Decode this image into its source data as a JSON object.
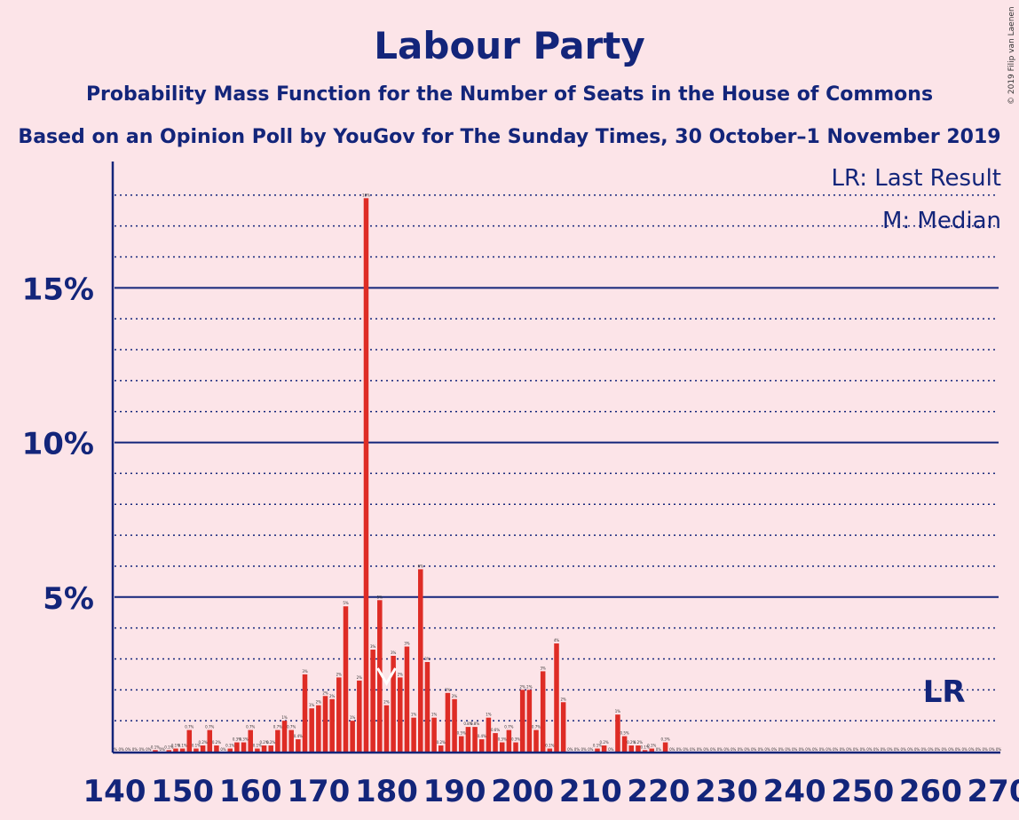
{
  "colors": {
    "background": "#FCE4E8",
    "bar": "#DE2C25",
    "axis": "#13257A",
    "text": "#13257A",
    "median_marker": "#FFFFFF"
  },
  "copyright": "© 2019 Filip van Laenen",
  "chart_data": {
    "type": "bar",
    "title": "Labour Party",
    "subtitle": "Probability Mass Function for the Number of Seats in the House of Commons",
    "subtitle2": "Based on an Opinion Poll by YouGov for The Sunday Times, 30 October–1 November 2019",
    "legend": [
      "LR: Last Result",
      "M: Median"
    ],
    "legend_position": "top-right",
    "last_result_label": "LR",
    "last_result_seat": 262,
    "median_label": "M",
    "median_seat": 180,
    "xlim": [
      140,
      270
    ],
    "ylim": [
      0,
      19
    ],
    "x_ticks": [
      "140",
      "150",
      "160",
      "170",
      "180",
      "190",
      "200",
      "210",
      "220",
      "230",
      "240",
      "250",
      "260",
      "270"
    ],
    "y_ticks": [
      {
        "value": 5,
        "label": "5%"
      },
      {
        "value": 10,
        "label": "10%"
      },
      {
        "value": 15,
        "label": "15%"
      }
    ],
    "y_minor_ticks": [
      1,
      2,
      3,
      4,
      6,
      7,
      8,
      9,
      11,
      12,
      13,
      14,
      16,
      17,
      18
    ],
    "x": [
      140,
      141,
      142,
      143,
      144,
      145,
      146,
      147,
      148,
      149,
      150,
      151,
      152,
      153,
      154,
      155,
      156,
      157,
      158,
      159,
      160,
      161,
      162,
      163,
      164,
      165,
      166,
      167,
      168,
      169,
      170,
      171,
      172,
      173,
      174,
      175,
      176,
      177,
      178,
      179,
      180,
      181,
      182,
      183,
      184,
      185,
      186,
      187,
      188,
      189,
      190,
      191,
      192,
      193,
      194,
      195,
      196,
      197,
      198,
      199,
      200,
      201,
      202,
      203,
      204,
      205,
      206,
      207,
      208,
      209,
      210,
      211,
      212,
      213,
      214,
      215,
      216,
      217,
      218,
      219,
      220,
      221,
      222,
      223,
      224,
      225,
      226,
      227,
      228,
      229,
      230,
      231,
      232,
      233,
      234,
      235,
      236,
      237,
      238,
      239,
      240,
      241,
      242,
      243,
      244,
      245,
      246,
      247,
      248,
      249,
      250,
      251,
      252,
      253,
      254,
      255,
      256,
      257,
      258,
      259,
      260,
      261,
      262,
      263,
      264,
      265,
      266,
      267,
      268,
      269,
      270
    ],
    "values": [
      0,
      0,
      0,
      0,
      0,
      0,
      0.05,
      0,
      0.05,
      0.1,
      0.1,
      0.7,
      0.1,
      0.2,
      0.7,
      0.2,
      0,
      0.1,
      0.3,
      0.3,
      0.7,
      0.1,
      0.2,
      0.2,
      0.7,
      1.0,
      0.7,
      0.4,
      2.5,
      1.4,
      1.5,
      1.8,
      1.7,
      2.4,
      4.7,
      1.0,
      2.3,
      17.9,
      3.3,
      4.9,
      1.5,
      3.1,
      2.4,
      3.4,
      1.1,
      5.9,
      2.9,
      1.1,
      0.2,
      1.9,
      1.7,
      0.5,
      0.8,
      0.8,
      0.4,
      1.1,
      0.6,
      0.3,
      0.7,
      0.3,
      2.0,
      2.0,
      0.7,
      2.6,
      0.1,
      3.5,
      1.6,
      0,
      0,
      0,
      0,
      0.1,
      0.2,
      0,
      1.2,
      0.5,
      0.2,
      0.2,
      0.05,
      0.1,
      0,
      0.3,
      0,
      0,
      0,
      0,
      0,
      0,
      0,
      0,
      0,
      0,
      0,
      0,
      0,
      0,
      0,
      0,
      0,
      0,
      0,
      0,
      0,
      0,
      0,
      0,
      0,
      0,
      0,
      0,
      0,
      0,
      0,
      0,
      0,
      0,
      0,
      0,
      0,
      0,
      0,
      0,
      0,
      0,
      0,
      0,
      0,
      0,
      0,
      0,
      0
    ]
  }
}
